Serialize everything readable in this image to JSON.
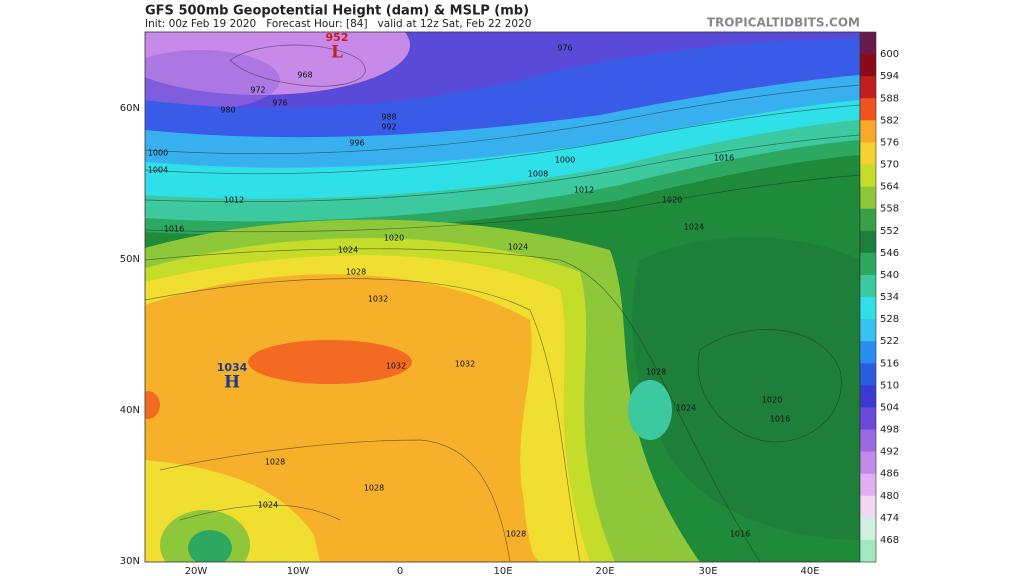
{
  "header": {
    "title": "GFS 500mb Geopotential Height (dam) & MSLP (mb)",
    "subtitle": "Init: 00z Feb 19 2020   Forecast Hour: [84]   valid at 12z Sat, Feb 22 2020",
    "credit": "TROPICALTIDBITS.COM"
  },
  "map": {
    "lat_labels": [
      "60N",
      "50N",
      "40N",
      "30N"
    ],
    "lon_labels": [
      "20W",
      "10W",
      "0",
      "10E",
      "20E",
      "30E",
      "40E"
    ],
    "centers": [
      {
        "symbol": "H",
        "pressure": "1034"
      },
      {
        "symbol": "L",
        "pressure": "952"
      }
    ],
    "isobar_labels": [
      "976",
      "968",
      "972",
      "976",
      "980",
      "988",
      "992",
      "996",
      "1000",
      "1004",
      "1012",
      "1016",
      "1020",
      "1024",
      "1028",
      "1032",
      "1032",
      "1032",
      "1028",
      "1024",
      "1028",
      "1028",
      "1024",
      "1012",
      "1008",
      "1000",
      "1016",
      "1020",
      "1024",
      "1028",
      "1024",
      "1020",
      "1016",
      "1016"
    ]
  },
  "colorbar": {
    "levels": [
      600,
      594,
      588,
      582,
      576,
      570,
      564,
      558,
      552,
      546,
      540,
      534,
      528,
      522,
      516,
      510,
      504,
      498,
      492,
      486,
      480,
      474,
      468
    ],
    "colors": [
      "#6a1a4a",
      "#8b0a1a",
      "#c21e1e",
      "#f0541e",
      "#f7a92a",
      "#f5d230",
      "#c5dc2a",
      "#8ec83a",
      "#3aa048",
      "#1e7f3a",
      "#2da860",
      "#3dc9a0",
      "#30e0e8",
      "#38c2f0",
      "#2a8ef0",
      "#2a5ee0",
      "#3a3ad0",
      "#6a48d8",
      "#9a6ae0",
      "#c08ae8",
      "#e0b0f0",
      "#f0d8f0",
      "#d0f0e0",
      "#a0e8c0"
    ]
  }
}
